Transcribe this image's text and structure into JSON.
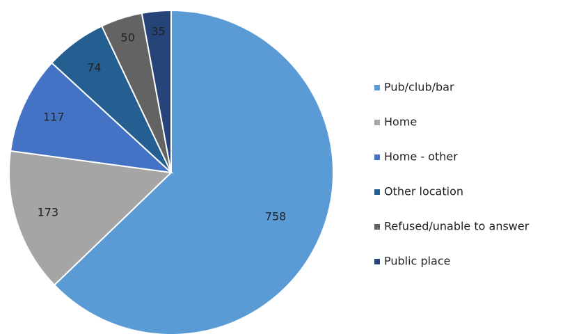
{
  "chart_data": {
    "type": "pie",
    "categories": [
      "Pub/club/bar",
      "Home",
      "Home - other",
      "Other location",
      "Refused/unable to answer",
      "Public place"
    ],
    "values": [
      758,
      173,
      117,
      74,
      50,
      35
    ],
    "colors": [
      "#5b9bd5",
      "#a5a5a5",
      "#4472c4",
      "#255e91",
      "#636363",
      "#264478"
    ],
    "legend": "right"
  }
}
